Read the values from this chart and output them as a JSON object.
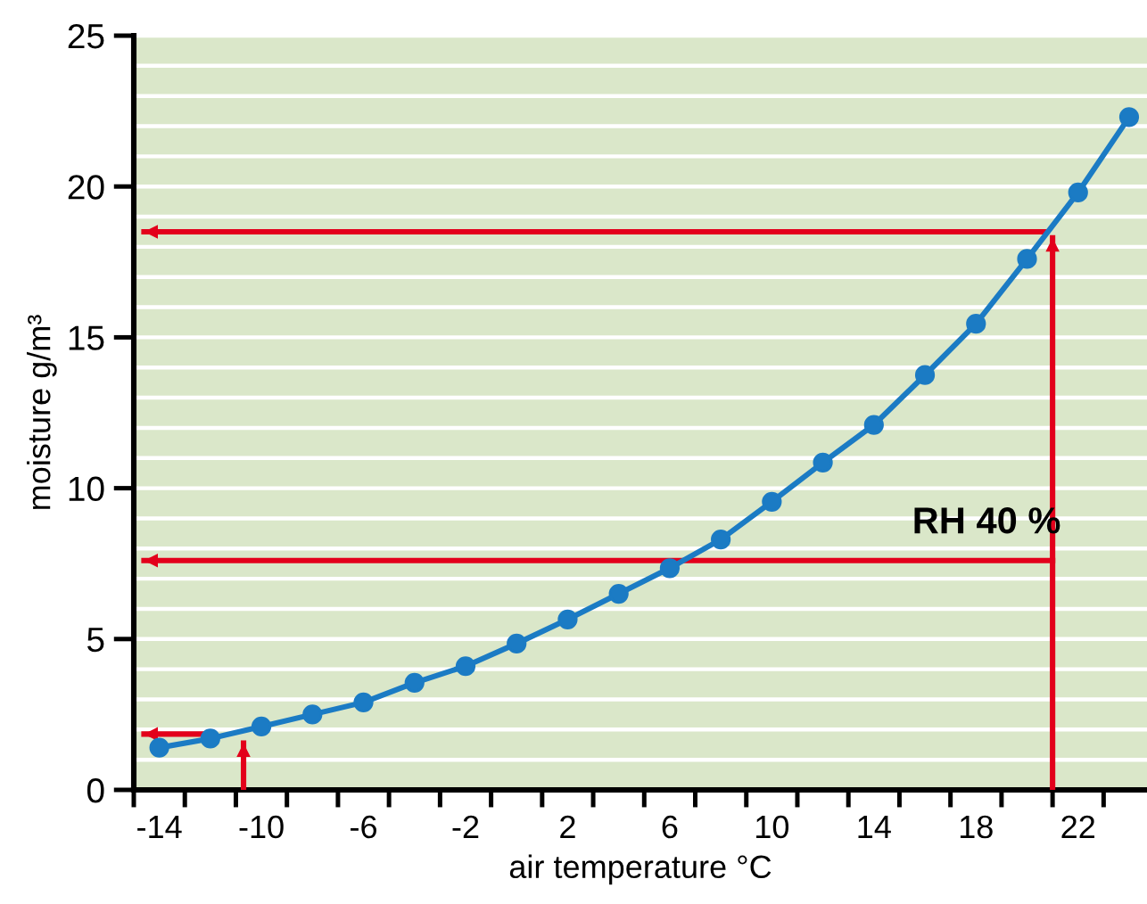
{
  "chart_data": {
    "type": "line",
    "xlabel": "air temperature °C",
    "ylabel": "moisture g/m³",
    "xlim": [
      -15,
      24.7
    ],
    "ylim": [
      0,
      25
    ],
    "xticks": [
      -14,
      -10,
      -6,
      -2,
      2,
      6,
      10,
      14,
      18,
      22,
      {
        "value": -15,
        "label": null
      },
      {
        "value": -13,
        "label": null
      },
      {
        "value": -11,
        "label": null
      },
      {
        "value": -9,
        "label": null
      },
      {
        "value": -7,
        "label": null
      },
      {
        "value": -5,
        "label": null
      },
      {
        "value": -3,
        "label": null
      },
      {
        "value": -1,
        "label": null
      },
      {
        "value": 1,
        "label": null
      },
      {
        "value": 3,
        "label": null
      },
      {
        "value": 5,
        "label": null
      },
      {
        "value": 7,
        "label": null
      },
      {
        "value": 9,
        "label": null
      },
      {
        "value": 11,
        "label": null
      },
      {
        "value": 13,
        "label": null
      },
      {
        "value": 15,
        "label": null
      },
      {
        "value": 17,
        "label": null
      },
      {
        "value": 19,
        "label": null
      },
      {
        "value": 21,
        "label": null
      },
      {
        "value": 23,
        "label": null
      }
    ],
    "yticks": [
      0,
      5,
      10,
      15,
      20,
      25,
      {
        "value": 1,
        "label": null
      },
      {
        "value": 2,
        "label": null
      },
      {
        "value": 3,
        "label": null
      },
      {
        "value": 4,
        "label": null
      },
      {
        "value": 6,
        "label": null
      },
      {
        "value": 7,
        "label": null
      },
      {
        "value": 8,
        "label": null
      },
      {
        "value": 9,
        "label": null
      },
      {
        "value": 11,
        "label": null
      },
      {
        "value": 12,
        "label": null
      },
      {
        "value": 13,
        "label": null
      },
      {
        "value": 14,
        "label": null
      },
      {
        "value": 16,
        "label": null
      },
      {
        "value": 17,
        "label": null
      },
      {
        "value": 18,
        "label": null
      },
      {
        "value": 19,
        "label": null
      },
      {
        "value": 21,
        "label": null
      },
      {
        "value": 22,
        "label": null
      },
      {
        "value": 23,
        "label": null
      },
      {
        "value": 24,
        "label": null
      }
    ],
    "grid": "y",
    "marker": "circle",
    "line_style": "solid",
    "series": [
      {
        "color": "#1b7bc4",
        "x": [
          -14,
          -12,
          -10,
          -8,
          -6,
          -4,
          -2,
          0,
          2,
          4,
          6,
          8,
          10,
          12,
          14,
          16,
          18,
          20,
          22,
          24
        ],
        "values": [
          1.4,
          1.7,
          2.1,
          2.5,
          2.9,
          3.55,
          4.1,
          4.85,
          5.65,
          6.5,
          7.35,
          8.3,
          9.55,
          10.85,
          12.1,
          13.75,
          15.45,
          17.6,
          19.8,
          22.3
        ]
      },
      {
        "type": "line",
        "marker": "none",
        "color": "#e3001b",
        "x": [
          21,
          21
        ],
        "values": [
          0,
          18.3
        ]
      },
      {
        "type": "line",
        "marker": "none",
        "color": "#e3001b",
        "x": [
          20.7,
          -14.6
        ],
        "values": [
          18.5,
          18.5
        ]
      },
      {
        "type": "line",
        "marker": "none",
        "color": "#e3001b",
        "x": [
          21,
          -14.6
        ],
        "values": [
          7.6,
          7.6
        ]
      },
      {
        "type": "line",
        "marker": "none",
        "color": "#e3001b",
        "x": [
          -12,
          -14.6
        ],
        "values": [
          1.85,
          1.85
        ]
      },
      {
        "type": "line",
        "marker": "none",
        "color": "#e3001b",
        "x": [
          -10.7,
          -10.7
        ],
        "values": [
          0,
          1.55
        ]
      }
    ],
    "annotations": [
      "RH 40 %"
    ]
  }
}
